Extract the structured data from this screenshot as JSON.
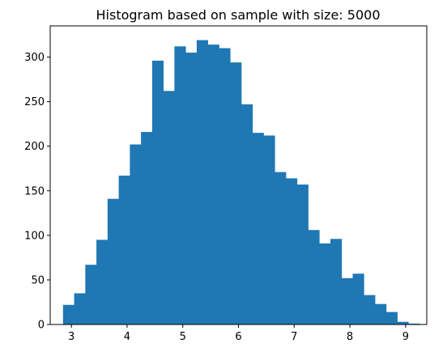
{
  "chart_data": {
    "type": "bar",
    "title": "Histogram based on sample with size: 5000",
    "xlabel": "",
    "ylabel": "",
    "bin_start": 2.85,
    "bin_width": 0.2,
    "values": [
      22,
      35,
      67,
      95,
      141,
      167,
      202,
      216,
      296,
      262,
      312,
      305,
      319,
      314,
      310,
      294,
      247,
      215,
      212,
      171,
      164,
      157,
      106,
      91,
      96,
      52,
      57,
      33,
      23,
      14,
      3,
      1
    ],
    "xlim": [
      2.62,
      9.38
    ],
    "ylim": [
      0,
      335
    ],
    "xticks": [
      3,
      4,
      5,
      6,
      7,
      8,
      9
    ],
    "yticks": [
      0,
      50,
      100,
      150,
      200,
      250,
      300
    ],
    "bar_color": "#1f77b4",
    "grid": false,
    "legend": "none"
  }
}
